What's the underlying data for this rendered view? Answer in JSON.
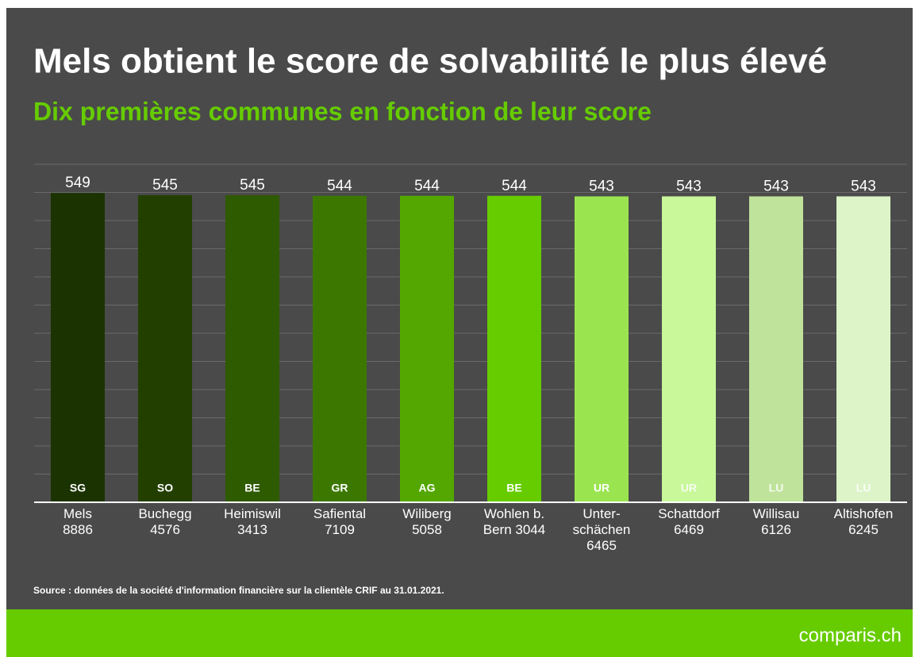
{
  "chart_data": {
    "type": "bar",
    "title": "Mels obtient le score de solvabilité le plus élevé",
    "subtitle": "Dix premières communes en fonction de leur score",
    "categories": [
      "Mels\n8886",
      "Buchegg\n4576",
      "Heimiswil\n3413",
      "Safiental\n7109",
      "Wiliberg\n5058",
      "Wohlen b.\nBern 3044",
      "Unter-\nschächen\n6465",
      "Schattdorf\n6469",
      "Willisau\n6126",
      "Altishofen\n6245"
    ],
    "values": [
      549,
      545,
      545,
      544,
      544,
      544,
      543,
      543,
      543,
      543
    ],
    "bar_labels": [
      "SG",
      "SO",
      "BE",
      "GR",
      "AG",
      "BE",
      "UR",
      "UR",
      "LU",
      "LU"
    ],
    "colors": [
      "#1b3300",
      "#223f00",
      "#2e5a00",
      "#3c7800",
      "#53a700",
      "#66cc00",
      "#9ae54f",
      "#c8f89a",
      "#bfe39a",
      "#dcf4c8"
    ],
    "ylim": [
      0,
      600
    ],
    "yticks": [
      0,
      50,
      100,
      150,
      200,
      250,
      300,
      350,
      400,
      450,
      500,
      550,
      600
    ],
    "grid": true,
    "source": "Source : données de la société d'information financière sur la clientèle CRIF au 31.01.2021.",
    "brand": "comparis.ch"
  }
}
